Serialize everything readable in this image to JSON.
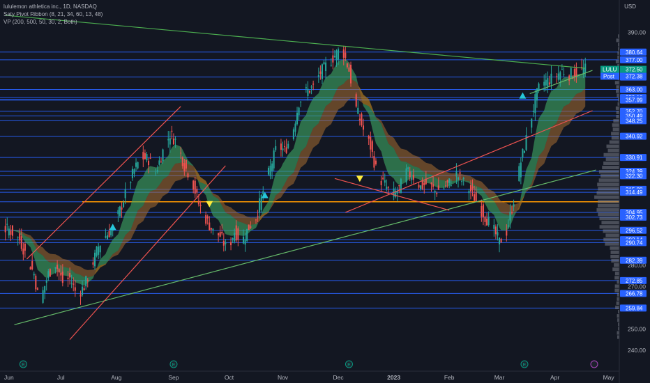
{
  "legend": {
    "symbol": "lululemon athletica inc., 1D, NASDAQ",
    "ind1": "Saty Pivot Ribbon (8, 21, 34, 60, 13, 48)",
    "ind2": "VP (200, 500, 50, 30, 2, Both)"
  },
  "currency": "USD",
  "chart_data": {
    "type": "candlestick",
    "ylim": [
      236,
      396
    ],
    "y_ticks": [
      390,
      280,
      270,
      250,
      240
    ],
    "x_ticks": [
      "Jun",
      "Jul",
      "Aug",
      "Sep",
      "Oct",
      "Nov",
      "Dec",
      "2023",
      "Feb",
      "Mar",
      "Apr",
      "May"
    ],
    "x_tick_days": [
      2,
      31,
      62,
      94,
      125,
      155,
      186,
      217,
      248,
      276,
      307,
      337
    ],
    "last_day": 324,
    "last_price": 372.5,
    "last_label": "LULU",
    "post_price": 372.38,
    "post_label": "Post",
    "price_levels": [
      380.64,
      377.0,
      368.87,
      363.0,
      359.18,
      358.22,
      358.22,
      358.22,
      358.22,
      357.99,
      352.7,
      350.49,
      348.25,
      340.92,
      330.91,
      324.39,
      322.3,
      315.88,
      314.49,
      310.0,
      304.95,
      302.73,
      296.52,
      292.14,
      290.74,
      282.39,
      272.85,
      266.78,
      259.84
    ],
    "labeled_levels": [
      380.64,
      377.0,
      368.87,
      363.0,
      359.18,
      358.22,
      358.22,
      358.22,
      357.99,
      352.7,
      350.49,
      348.25,
      340.92,
      330.91,
      324.39,
      322.3,
      315.88,
      314.49,
      304.95,
      302.73,
      296.52,
      292.14,
      290.74,
      282.39,
      272.85,
      266.78,
      259.84
    ],
    "poc_level": 310.0,
    "close_series": [
      [
        2,
        297
      ],
      [
        8,
        292
      ],
      [
        12,
        284
      ],
      [
        16,
        276
      ],
      [
        19,
        262
      ],
      [
        24,
        276
      ],
      [
        28,
        281
      ],
      [
        32,
        272
      ],
      [
        36,
        274
      ],
      [
        40,
        266
      ],
      [
        44,
        270
      ],
      [
        48,
        279
      ],
      [
        52,
        289
      ],
      [
        56,
        294
      ],
      [
        60,
        297
      ],
      [
        64,
        306
      ],
      [
        68,
        316
      ],
      [
        72,
        325
      ],
      [
        76,
        331
      ],
      [
        80,
        330
      ],
      [
        84,
        324
      ],
      [
        88,
        334
      ],
      [
        92,
        342
      ],
      [
        96,
        338
      ],
      [
        100,
        327
      ],
      [
        104,
        321
      ],
      [
        108,
        309
      ],
      [
        112,
        302
      ],
      [
        116,
        296
      ],
      [
        120,
        294
      ],
      [
        124,
        287
      ],
      [
        128,
        296
      ],
      [
        132,
        291
      ],
      [
        136,
        298
      ],
      [
        140,
        303
      ],
      [
        144,
        315
      ],
      [
        148,
        326
      ],
      [
        152,
        337
      ],
      [
        156,
        334
      ],
      [
        160,
        341
      ],
      [
        164,
        357
      ],
      [
        168,
        362
      ],
      [
        172,
        364
      ],
      [
        176,
        371
      ],
      [
        180,
        375
      ],
      [
        184,
        379
      ],
      [
        188,
        383
      ],
      [
        192,
        372
      ],
      [
        196,
        354
      ],
      [
        200,
        344
      ],
      [
        204,
        336
      ],
      [
        208,
        322
      ],
      [
        212,
        318
      ],
      [
        216,
        313
      ],
      [
        220,
        316
      ],
      [
        224,
        324
      ],
      [
        228,
        322
      ],
      [
        232,
        317
      ],
      [
        236,
        319
      ],
      [
        240,
        315
      ],
      [
        244,
        316
      ],
      [
        248,
        319
      ],
      [
        252,
        323
      ],
      [
        256,
        319
      ],
      [
        260,
        315
      ],
      [
        264,
        309
      ],
      [
        268,
        303
      ],
      [
        272,
        298
      ],
      [
        276,
        291
      ],
      [
        280,
        296
      ],
      [
        284,
        311
      ],
      [
        288,
        329
      ],
      [
        292,
        343
      ],
      [
        296,
        358
      ],
      [
        299,
        366
      ],
      [
        303,
        367
      ],
      [
        307,
        369
      ],
      [
        311,
        372
      ],
      [
        315,
        370
      ],
      [
        319,
        371
      ],
      [
        324,
        372.5
      ]
    ],
    "trendlines": [
      {
        "points": [
          [
            0,
            398
          ],
          [
            324,
            373
          ]
        ],
        "color": "#4caf50"
      },
      {
        "points": [
          [
            5,
            252
          ],
          [
            330,
            325
          ]
        ],
        "color": "#66bb6a"
      },
      {
        "points": [
          [
            190,
            305
          ],
          [
            328,
            353
          ]
        ],
        "color": "#ef5350"
      },
      {
        "points": [
          [
            184,
            321
          ],
          [
            248,
            306
          ]
        ],
        "color": "#ef5350"
      },
      {
        "points": [
          [
            36,
            245
          ],
          [
            123,
            327
          ]
        ],
        "color": "#ef5350"
      },
      {
        "points": [
          [
            12,
            283
          ],
          [
            98,
            355
          ]
        ],
        "color": "#ef5350"
      },
      {
        "points": [
          [
            293,
            361
          ],
          [
            328,
            372
          ]
        ],
        "color": "#66bb6a"
      }
    ],
    "markers": [
      {
        "day": 60,
        "price": 298,
        "dir": "up",
        "color": "#26c6da"
      },
      {
        "day": 114,
        "price": 309,
        "dir": "down",
        "color": "#ffeb3b"
      },
      {
        "day": 145,
        "price": 313,
        "dir": "up",
        "color": "#26c6da"
      },
      {
        "day": 198,
        "price": 321,
        "dir": "down",
        "color": "#ffeb3b"
      },
      {
        "day": 289,
        "price": 360,
        "dir": "up",
        "color": "#26c6da"
      }
    ],
    "earnings_days": [
      10,
      94,
      192,
      290
    ],
    "colors": {
      "up": "#26a69a",
      "down": "#ef5350",
      "level": "#2962ff",
      "poc": "#ff9800"
    }
  }
}
